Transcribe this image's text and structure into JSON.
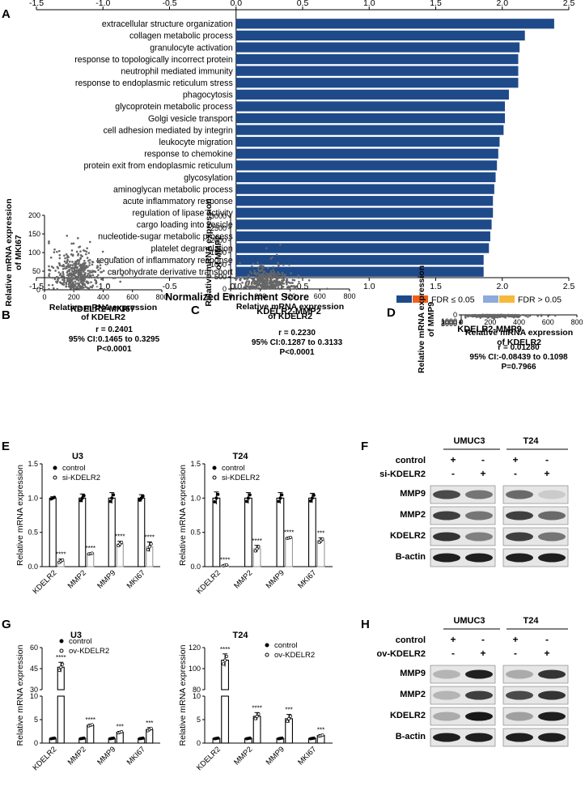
{
  "panel_labels": {
    "A": "A",
    "B": "B",
    "C": "C",
    "D": "D",
    "E": "E",
    "F": "F",
    "G": "G",
    "H": "H"
  },
  "colors": {
    "bar": "#1f4a8a",
    "fdr_sig": [
      "#1f4a8a",
      "#f0601c"
    ],
    "fdr_ns": [
      "#8eaadb",
      "#f6b93b"
    ],
    "dot": "#666666",
    "black": "#000000"
  },
  "chart_data": [
    {
      "id": "A",
      "type": "bar",
      "orientation": "horizontal",
      "categories": [
        "extracellular structure organization",
        "collagen metabolic process",
        "granulocyte activation",
        "response to topologically incorrect protein",
        "neutrophil mediated immunity",
        "response to endoplasmic reticulum stress",
        "phagocytosis",
        "glycoprotein metabolic process",
        "Golgi vesicle transport",
        "cell adhesion mediated by integrin",
        "leukocyte migration",
        "response to chemokine",
        "protein exit from endoplasmic reticulum",
        "glycosylation",
        "aminoglycan metabolic process",
        "acute inflammatory response",
        "regulation of lipase activity",
        "cargo loading into vesicle",
        "nucleotide-sugar metabolic process",
        "platelet degranulation",
        "regulation of inflammatory response",
        "carbohydrate derivative transport"
      ],
      "values": [
        2.39,
        2.17,
        2.13,
        2.12,
        2.12,
        2.12,
        2.05,
        2.02,
        2.02,
        2.01,
        1.98,
        1.97,
        1.96,
        1.95,
        1.94,
        1.93,
        1.93,
        1.92,
        1.91,
        1.9,
        1.86,
        1.86
      ],
      "xlim": [
        -1.5,
        2.5
      ],
      "xticks": [
        "-1.5",
        "-1.0",
        "-0.5",
        "0.0",
        "0.5",
        "1.0",
        "1.5",
        "2.0",
        "2.5"
      ],
      "xlabel": "Normalized Enrichment Score",
      "legend": [
        "FDR ≤ 0.05",
        "FDR > 0.05"
      ]
    },
    {
      "id": "B",
      "type": "scatter",
      "title": "KDELR2-MKI67",
      "stats": [
        "r = 0.2401",
        "95% CI:0.1465 to 0.3295",
        "P<0.0001"
      ],
      "xlabel": "Relative mRNA expression\nof KDELR2",
      "ylabel": "Relative mRNA expression\nof MKI67",
      "xlim": [
        0,
        800
      ],
      "ylim": [
        0,
        200
      ],
      "xticks": [
        "0",
        "200",
        "400",
        "600",
        "800"
      ],
      "yticks": [
        "0",
        "50",
        "100",
        "150",
        "200"
      ],
      "cloud": {
        "n": 420,
        "x_center": 220,
        "x_sd": 80,
        "y_center": 45,
        "y_sd": 28,
        "x_max": 650,
        "y_max": 145
      }
    },
    {
      "id": "C",
      "type": "scatter",
      "title": "KDELR2-MMP2",
      "stats": [
        "r = 0.2230",
        "95% CI:0.1287 to 0.3133",
        "P<0.0001"
      ],
      "xlabel": "Relative mRNA expression\nof KDELR2",
      "ylabel": "Relative mRNA expression\nof MMP2",
      "xlim": [
        0,
        800
      ],
      "ylim": [
        0,
        3000
      ],
      "xticks": [
        "0",
        "200",
        "400",
        "600",
        "800"
      ],
      "yticks": [
        "0",
        "500",
        "1000",
        "1500",
        "2000",
        "2500",
        "3000"
      ],
      "cloud": {
        "n": 420,
        "x_center": 240,
        "x_sd": 80,
        "y_center": 200,
        "y_sd": 320,
        "x_max": 650,
        "y_max": 2100
      }
    },
    {
      "id": "D",
      "type": "scatter",
      "title": "KDELR2-MMP9",
      "stats": [
        "r = 0.01280",
        "95% CI:-0.08439 to 0.1098",
        "P=0.7966"
      ],
      "xlabel": "Relative mRNA expression\nof KDELR2",
      "ylabel": "Relative mRNA expression\nof MMP9",
      "xlim": [
        0,
        800
      ],
      "ylim": [
        0,
        3000
      ],
      "xticks": [
        "0",
        "200",
        "400",
        "600",
        "800"
      ],
      "yticks": [
        "0",
        "1000",
        "2000",
        "3000"
      ],
      "cloud": {
        "n": 420,
        "x_center": 230,
        "x_sd": 80,
        "y_center": 40,
        "y_sd": 140,
        "x_max": 650,
        "y_max": 2000
      }
    },
    {
      "id": "E-U3",
      "type": "bar",
      "title": "U3",
      "categories": [
        "KDELR2",
        "MMP2",
        "MMP9",
        "MKI67"
      ],
      "series": [
        {
          "name": "control",
          "values": [
            1.0,
            1.0,
            1.0,
            1.0
          ],
          "err": [
            0.02,
            0.06,
            0.08,
            0.05
          ]
        },
        {
          "name": "si-KDELR2",
          "values": [
            0.08,
            0.19,
            0.33,
            0.29
          ],
          "err": [
            0.03,
            0.01,
            0.04,
            0.07
          ]
        }
      ],
      "sig": [
        "****",
        "****",
        "****",
        "****"
      ],
      "ylabel": "Relative mRNA expression",
      "ylim": [
        0,
        1.5
      ],
      "yticks": [
        "0.0",
        "0.5",
        "1.0",
        "1.5"
      ]
    },
    {
      "id": "E-T24",
      "type": "bar",
      "title": "T24",
      "categories": [
        "KDELR2",
        "MMP2",
        "MMP9",
        "MKI67"
      ],
      "series": [
        {
          "name": "control",
          "values": [
            1.0,
            1.0,
            1.0,
            1.0
          ],
          "err": [
            0.09,
            0.08,
            0.08,
            0.07
          ]
        },
        {
          "name": "si-KDELR2",
          "values": [
            0.02,
            0.26,
            0.42,
            0.38
          ],
          "err": [
            0.01,
            0.05,
            0.01,
            0.04
          ]
        }
      ],
      "sig": [
        "****",
        "****",
        "****",
        "***"
      ],
      "ylabel": "Relative mRNA expression",
      "ylim": [
        0,
        1.5
      ],
      "yticks": [
        "0.0",
        "0.5",
        "1.0",
        "1.5"
      ]
    },
    {
      "id": "G-U3",
      "type": "bar",
      "title": "U3",
      "categories": [
        "KDELR2",
        "MMP2",
        "MMP9",
        "MKI67"
      ],
      "series": [
        {
          "name": "control",
          "values": [
            1.0,
            1.0,
            1.0,
            1.0
          ],
          "err": [
            0.1,
            0.1,
            0.1,
            0.1
          ]
        },
        {
          "name": "ov-KDELR2",
          "values": [
            46,
            3.8,
            2.3,
            2.9
          ],
          "err": [
            3.5,
            0.2,
            0.2,
            0.4
          ]
        }
      ],
      "sig": [
        "****",
        "****",
        "***",
        "***"
      ],
      "ylabel": "Relative mRNA expression",
      "breaks": {
        "low": [
          0,
          10
        ],
        "high": [
          30,
          60
        ]
      },
      "yticks_low": [
        "0",
        "5",
        "10"
      ],
      "yticks_high": [
        "30",
        "45",
        "60"
      ]
    },
    {
      "id": "G-T24",
      "type": "bar",
      "title": "T24",
      "categories": [
        "KDELR2",
        "MMP2",
        "MMP9",
        "MKI67"
      ],
      "series": [
        {
          "name": "control",
          "values": [
            1.0,
            1.0,
            1.0,
            1.0
          ],
          "err": [
            0.1,
            0.1,
            0.1,
            0.1
          ]
        },
        {
          "name": "ov-KDELR2",
          "values": [
            108,
            5.7,
            5.2,
            1.6
          ],
          "err": [
            6,
            0.8,
            0.9,
            0.2
          ]
        }
      ],
      "sig": [
        "****",
        "****",
        "***",
        "***"
      ],
      "ylabel": "Relative mRNA expression",
      "breaks": {
        "low": [
          0,
          10
        ],
        "high": [
          80,
          120
        ]
      },
      "yticks_low": [
        "0",
        "5",
        "10"
      ],
      "yticks_high": [
        "80",
        "100",
        "120"
      ]
    }
  ],
  "blot_F": {
    "cell_lines": [
      "UMUC3",
      "T24"
    ],
    "rows": [
      "control",
      "si-KDELR2"
    ],
    "signs": [
      [
        "+",
        "-",
        "+",
        "-"
      ],
      [
        "-",
        "+",
        "-",
        "+"
      ]
    ],
    "bands": [
      "MMP9",
      "MMP2",
      "KDELR2",
      "B-actin"
    ],
    "intensity": [
      [
        0.75,
        0.55,
        0.6,
        0.15
      ],
      [
        0.8,
        0.55,
        0.8,
        0.6
      ],
      [
        0.85,
        0.5,
        0.8,
        0.55
      ],
      [
        0.95,
        0.95,
        0.95,
        0.95
      ]
    ]
  },
  "blot_H": {
    "cell_lines": [
      "UMUC3",
      "T24"
    ],
    "rows": [
      "control",
      "ov-KDELR2"
    ],
    "signs": [
      [
        "+",
        "-",
        "+",
        "-"
      ],
      [
        "-",
        "+",
        "-",
        "+"
      ]
    ],
    "bands": [
      "MMP9",
      "MMP2",
      "KDELR2",
      "B-actin"
    ],
    "intensity": [
      [
        0.25,
        0.95,
        0.3,
        0.85
      ],
      [
        0.25,
        0.8,
        0.75,
        0.85
      ],
      [
        0.3,
        0.98,
        0.35,
        0.95
      ],
      [
        0.95,
        0.95,
        0.95,
        0.95
      ]
    ]
  }
}
